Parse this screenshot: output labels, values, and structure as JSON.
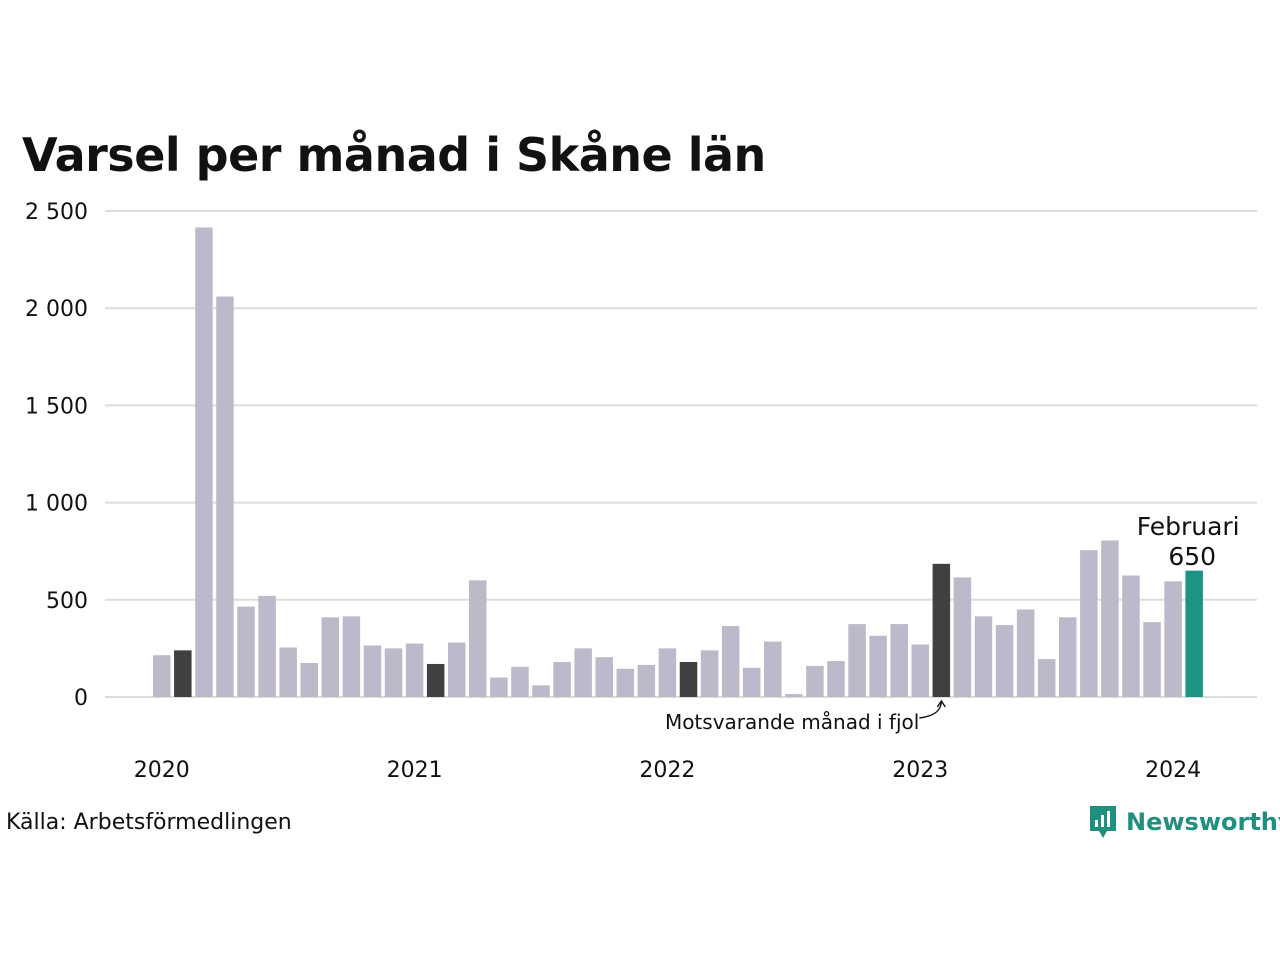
{
  "title": "Varsel per månad i Skåne län",
  "source": "Källa: Arbetsförmedlingen",
  "brand": {
    "name": "Newsworthy",
    "icon": "newsworthy-logo-icon",
    "color": "#1f8f7f"
  },
  "colors": {
    "bar": "#bcbaca",
    "same_month": "#404040",
    "highlight": "#1b9385",
    "grid": "#dcdcdc"
  },
  "chart_data": {
    "type": "bar",
    "title": "Varsel per månad i Skåne län",
    "xlabel": "",
    "ylabel": "",
    "ylim": [
      0,
      2500
    ],
    "yticks": [
      0,
      500,
      1000,
      1500,
      2000,
      2500
    ],
    "ytick_labels": [
      "0",
      "500",
      "1 000",
      "1 500",
      "2 000",
      "2 500"
    ],
    "xtick_labels": [
      "2020",
      "2021",
      "2022",
      "2023",
      "2024"
    ],
    "grid": true,
    "legend": "none",
    "categories": [
      "2020-01",
      "2020-02",
      "2020-03",
      "2020-04",
      "2020-05",
      "2020-06",
      "2020-07",
      "2020-08",
      "2020-09",
      "2020-10",
      "2020-11",
      "2020-12",
      "2021-01",
      "2021-02",
      "2021-03",
      "2021-04",
      "2021-05",
      "2021-06",
      "2021-07",
      "2021-08",
      "2021-09",
      "2021-10",
      "2021-11",
      "2021-12",
      "2022-01",
      "2022-02",
      "2022-03",
      "2022-04",
      "2022-05",
      "2022-06",
      "2022-07",
      "2022-08",
      "2022-09",
      "2022-10",
      "2022-11",
      "2022-12",
      "2023-01",
      "2023-02",
      "2023-03",
      "2023-04",
      "2023-05",
      "2023-06",
      "2023-07",
      "2023-08",
      "2023-09",
      "2023-10",
      "2023-11",
      "2023-12",
      "2024-01",
      "2024-02"
    ],
    "values": [
      215,
      240,
      2415,
      2060,
      465,
      520,
      255,
      175,
      410,
      415,
      265,
      250,
      275,
      170,
      280,
      600,
      100,
      155,
      60,
      180,
      250,
      205,
      145,
      165,
      250,
      180,
      240,
      365,
      150,
      285,
      15,
      160,
      185,
      375,
      315,
      375,
      270,
      685,
      615,
      415,
      370,
      450,
      195,
      410,
      755,
      805,
      625,
      385,
      595,
      650
    ],
    "same_month_indices": [
      1,
      13,
      25,
      37
    ],
    "highlight_index": 49,
    "annotations": {
      "previous_year": "Motsvarande månad i fjol",
      "highlight_month": "Februari",
      "highlight_value": "650"
    }
  }
}
